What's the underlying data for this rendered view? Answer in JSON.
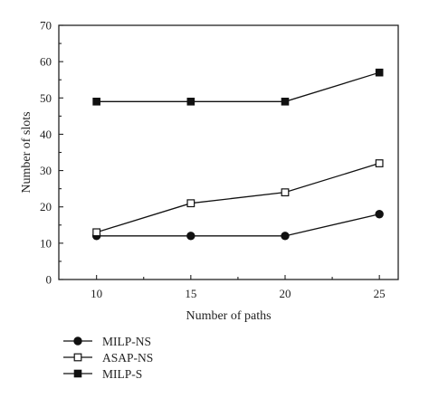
{
  "chart_data": {
    "type": "line",
    "xlabel": "Number of paths",
    "ylabel": "Number of slots",
    "x": [
      10,
      15,
      20,
      25
    ],
    "xlim": [
      8,
      26
    ],
    "ylim": [
      0,
      70
    ],
    "xticks": [
      10,
      15,
      20,
      25
    ],
    "yticks": [
      0,
      10,
      20,
      30,
      40,
      50,
      60,
      70
    ],
    "grid": false,
    "legend_position": "bottom-left, below the plot",
    "series": [
      {
        "name": "MILP-NS",
        "marker": "filled-circle",
        "color": "#111111",
        "values": [
          12,
          12,
          12,
          18
        ]
      },
      {
        "name": "ASAP-NS",
        "marker": "open-square",
        "color": "#111111",
        "values": [
          13,
          21,
          24,
          32
        ]
      },
      {
        "name": "MILP-S",
        "marker": "filled-square",
        "color": "#111111",
        "values": [
          49,
          49,
          49,
          57
        ]
      }
    ]
  }
}
